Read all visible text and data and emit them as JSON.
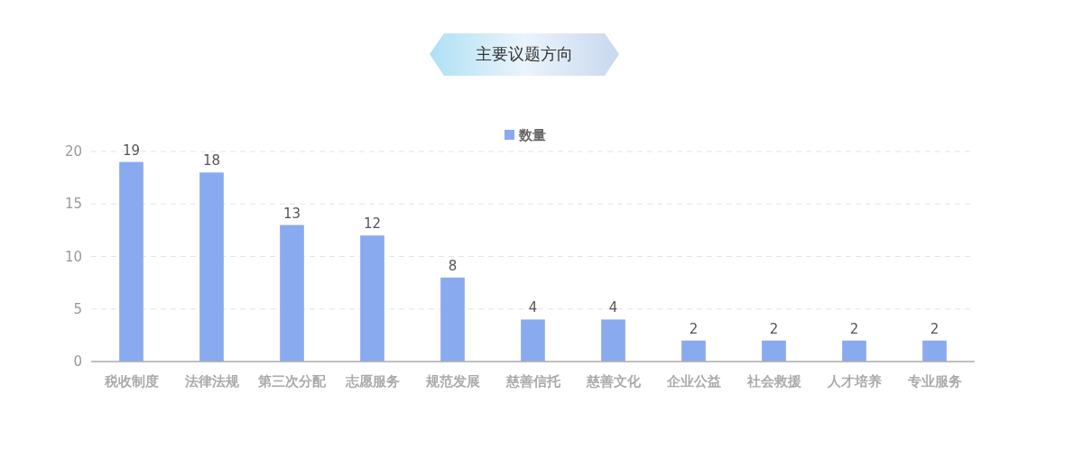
{
  "chart_data": {
    "type": "bar",
    "title": "主要议题方向",
    "categories": [
      "税收制度",
      "法律法规",
      "第三次分配",
      "志愿服务",
      "规范发展",
      "慈善信托",
      "慈善文化",
      "企业公益",
      "社会救援",
      "人才培养",
      "专业服务"
    ],
    "series": [
      {
        "name": "数量",
        "color": "#8aaaf0",
        "values": [
          19,
          18,
          13,
          12,
          8,
          4,
          4,
          2,
          2,
          2,
          2
        ]
      }
    ],
    "ylim": [
      0,
      20
    ],
    "yticks": [
      0,
      5,
      10,
      15,
      20
    ],
    "grid": "y",
    "legend": "top",
    "data_labels": true
  }
}
